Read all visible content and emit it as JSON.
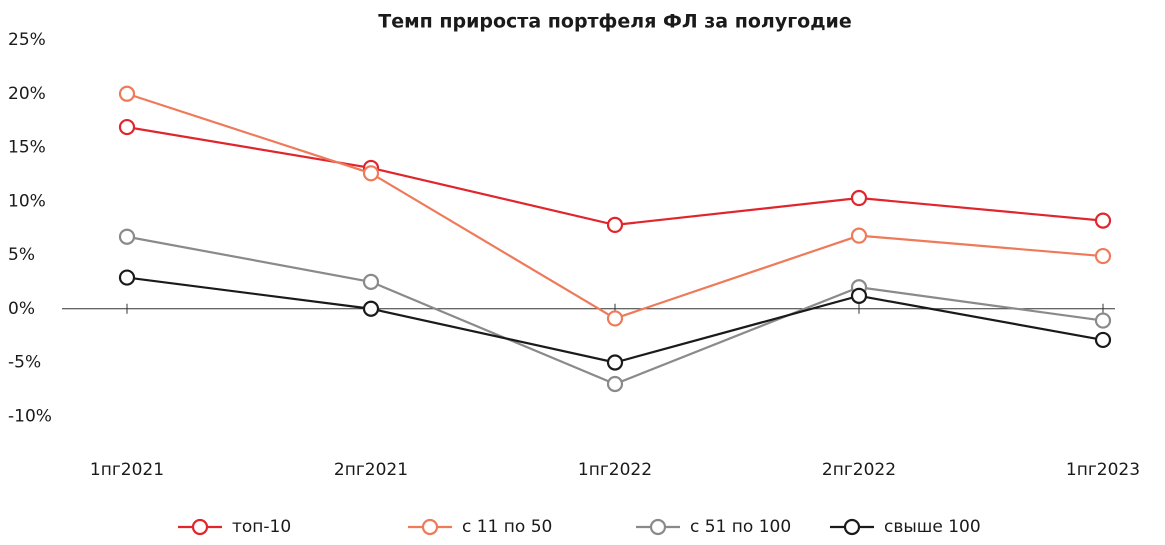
{
  "chart_data": {
    "type": "line",
    "title": "Темп прироста портфеля ФЛ за полугодие",
    "categories": [
      "1пг2021",
      "2пг2021",
      "1пг2022",
      "2пг2022",
      "1пг2023"
    ],
    "series": [
      {
        "name": "топ-10",
        "color": "#e0262c",
        "values": [
          16.9,
          13.1,
          7.8,
          10.3,
          8.2
        ]
      },
      {
        "name": "с 11 по 50",
        "color": "#ef7a5a",
        "values": [
          20,
          12.6,
          -0.9,
          6.8,
          4.9
        ]
      },
      {
        "name": "с 51 по 100",
        "color": "#8a8a8a",
        "values": [
          6.7,
          2.5,
          -7,
          2,
          -1.1
        ]
      },
      {
        "name": "свыше 100",
        "color": "#1a1a1a",
        "values": [
          2.9,
          0,
          -5,
          1.2,
          -2.9
        ]
      }
    ],
    "ylim": [
      -15,
      25
    ],
    "yticks": [
      {
        "value": -10,
        "label": "-10%"
      },
      {
        "value": -5,
        "label": "-5%"
      },
      {
        "value": 0,
        "label": "0%"
      },
      {
        "value": 5,
        "label": "5%"
      },
      {
        "value": 10,
        "label": "10%"
      },
      {
        "value": 15,
        "label": "15%"
      },
      {
        "value": 20,
        "label": "20%"
      },
      {
        "value": 25,
        "label": "25%"
      }
    ],
    "legend": "bottom"
  }
}
